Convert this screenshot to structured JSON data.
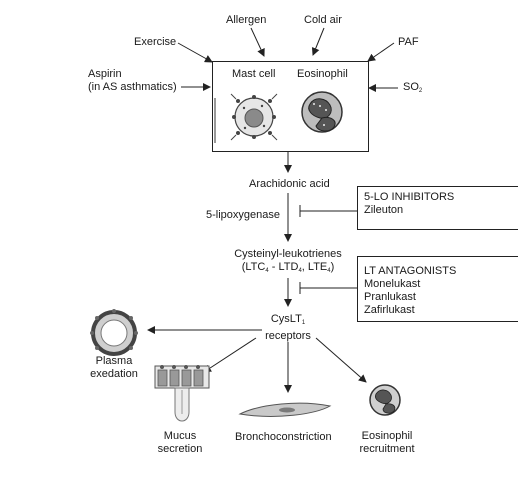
{
  "triggers": {
    "allergen": "Allergen",
    "cold_air": "Cold air",
    "exercise": "Exercise",
    "paf": "PAF",
    "aspirin_line1": "Aspirin",
    "aspirin_line2": "(in AS asthmatics)",
    "so2": "SO",
    "so2_sub": "2"
  },
  "cells": {
    "mast_cell": "Mast cell",
    "eosinophil": "Eosinophil"
  },
  "pathway": {
    "arachidonic_acid": "Arachidonic acid",
    "five_lipoxygenase": "5-lipoxygenase",
    "cysteinyl_line1": "Cysteinyl-leukotrienes",
    "ltc": "(LTC",
    "ltc_sub": "4",
    "ltd": " - LTD",
    "ltd_sub": "4",
    "lte": ", LTE",
    "lte_sub": "4",
    "lte_close": ")",
    "cyslt": "CysLT",
    "cyslt_sub": "1",
    "receptors": "receptors"
  },
  "inhibitors": {
    "five_lo": {
      "title": "5-LO INHIBITORS",
      "items": [
        "Zileuton"
      ]
    },
    "lt_antagonists": {
      "title": "LT ANTAGONISTS",
      "items": [
        "Monelukast",
        "Pranlukast",
        "Zafirlukast"
      ]
    }
  },
  "effects": {
    "plasma_line1": "Plasma",
    "plasma_line2": "exedation",
    "mucus_line1": "Mucus",
    "mucus_line2": "secretion",
    "broncho": "Bronchoconstriction",
    "eos_line1": "Eosinophil",
    "eos_line2": "recruitment"
  },
  "colors": {
    "line": "#222222",
    "cell_gray": "#8a8a8a",
    "cell_dark": "#555555"
  }
}
